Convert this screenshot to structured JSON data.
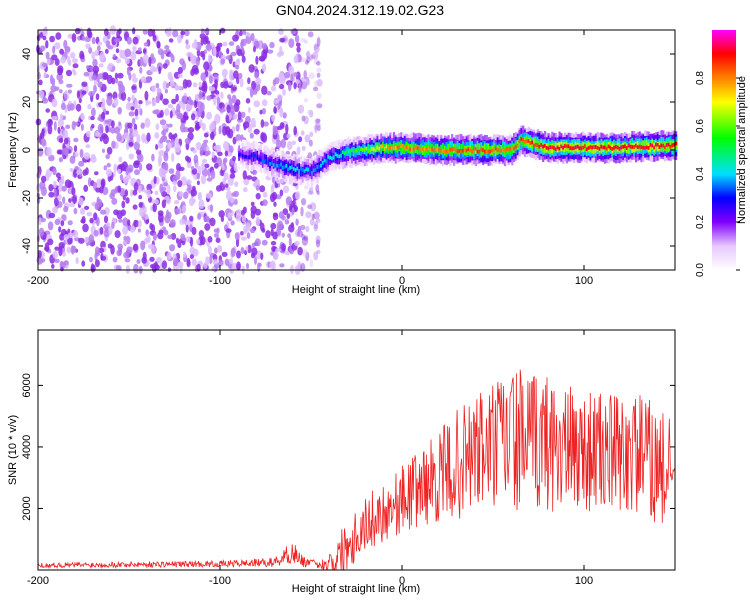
{
  "title": "GN04.2024.312.19.02.G23",
  "chart_data": [
    {
      "type": "heatmap",
      "xlabel": "Height of straight line (km)",
      "ylabel": "Frequency (Hz)",
      "xlim": [
        -200,
        150
      ],
      "ylim": [
        -50,
        50
      ],
      "xticks": [
        -200,
        -100,
        0,
        100
      ],
      "yticks": [
        -40,
        -20,
        0,
        20,
        40
      ],
      "colorbar": {
        "label": "Normalized spectral amplitude",
        "range": [
          0,
          1
        ],
        "ticks": [
          0.0,
          0.2,
          0.4,
          0.6,
          0.8
        ],
        "tick_labels": [
          "0.0",
          "0.2",
          "0.4",
          "0.6",
          "0.8"
        ],
        "colors": [
          "#ffffff",
          "#e8c8ff",
          "#8000ff",
          "#0000ff",
          "#00e0ff",
          "#00ff00",
          "#ffff00",
          "#ff8000",
          "#ff0000",
          "#ff00ff"
        ]
      },
      "noise_region": {
        "x_range": [
          -200,
          -45
        ],
        "freq_range": [
          -50,
          50
        ],
        "amplitude": 0.1
      },
      "signal_trace": [
        {
          "x": -90,
          "freq": -2,
          "amp": 0.25
        },
        {
          "x": -80,
          "freq": -3,
          "amp": 0.3
        },
        {
          "x": -70,
          "freq": -6,
          "amp": 0.35
        },
        {
          "x": -60,
          "freq": -8,
          "amp": 0.4
        },
        {
          "x": -50,
          "freq": -9,
          "amp": 0.35
        },
        {
          "x": -40,
          "freq": -3,
          "amp": 0.4
        },
        {
          "x": -30,
          "freq": -1,
          "amp": 0.5
        },
        {
          "x": -20,
          "freq": 0,
          "amp": 0.6
        },
        {
          "x": -10,
          "freq": 1,
          "amp": 0.75
        },
        {
          "x": 0,
          "freq": 1,
          "amp": 0.8
        },
        {
          "x": 20,
          "freq": 0,
          "amp": 0.8
        },
        {
          "x": 40,
          "freq": 0,
          "amp": 0.85
        },
        {
          "x": 60,
          "freq": 0,
          "amp": 0.8
        },
        {
          "x": 65,
          "freq": 4,
          "amp": 0.85
        },
        {
          "x": 80,
          "freq": 1,
          "amp": 0.9
        },
        {
          "x": 100,
          "freq": 1,
          "amp": 0.9
        },
        {
          "x": 120,
          "freq": 1,
          "amp": 0.9
        },
        {
          "x": 150,
          "freq": 2,
          "amp": 0.9
        }
      ]
    },
    {
      "type": "line",
      "xlabel": "Height of straight line (km)",
      "ylabel": "SNR (10 * v/v)",
      "xlim": [
        -200,
        150
      ],
      "ylim": [
        0,
        7800
      ],
      "xticks": [
        -200,
        -100,
        0,
        100
      ],
      "yticks": [
        2000,
        4000,
        6000
      ],
      "color": "#ee2222",
      "series": [
        {
          "name": "SNR",
          "x": [
            -200,
            -150,
            -100,
            -70,
            -60,
            -55,
            -45,
            -35,
            -30,
            -25,
            -20,
            -10,
            0,
            10,
            20,
            30,
            40,
            50,
            60,
            70,
            80,
            90,
            100,
            110,
            120,
            130,
            140,
            150
          ],
          "mean": [
            150,
            180,
            200,
            250,
            600,
            300,
            150,
            400,
            900,
            1200,
            1500,
            1900,
            2300,
            2700,
            3000,
            3400,
            3800,
            4000,
            4300,
            4100,
            4200,
            3900,
            3900,
            3800,
            3700,
            3800,
            3400,
            3000
          ],
          "spread": [
            80,
            100,
            100,
            150,
            400,
            200,
            100,
            700,
            1000,
            900,
            900,
            1000,
            1100,
            1300,
            1500,
            1800,
            2000,
            2200,
            2400,
            2300,
            2300,
            2100,
            2000,
            2000,
            2000,
            2000,
            2000,
            1800
          ]
        }
      ]
    }
  ]
}
